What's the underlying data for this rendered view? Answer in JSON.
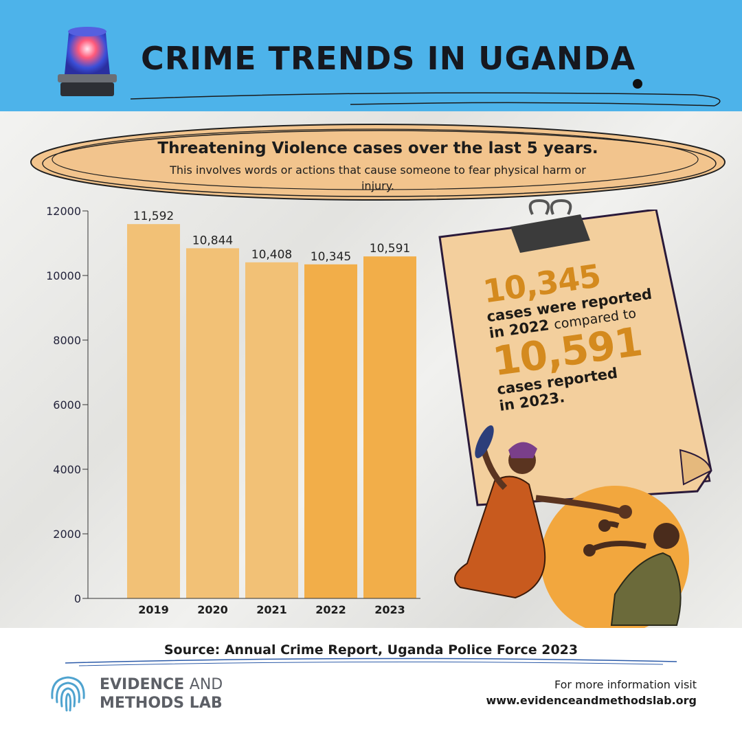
{
  "header": {
    "title": "CRIME TRENDS IN UGANDA",
    "background_color": "#4db3ea",
    "icon": "police-siren-icon"
  },
  "banner": {
    "title": "Threatening Violence cases over the last 5 years.",
    "subtitle": "This involves words or actions that cause someone to fear physical harm or injury.",
    "color": "#f2c48d"
  },
  "chart_data": {
    "type": "bar",
    "categories": [
      "2019",
      "2020",
      "2021",
      "2022",
      "2023"
    ],
    "values": [
      11592,
      10844,
      10408,
      10345,
      10591
    ],
    "data_labels": [
      "11,592",
      "10,844",
      "10,408",
      "10,345",
      "10,591"
    ],
    "title": "Threatening Violence cases over the last 5 years.",
    "xlabel": "",
    "ylabel": "",
    "ylim": [
      0,
      12000
    ],
    "yticks": [
      0,
      2000,
      4000,
      6000,
      8000,
      10000,
      12000
    ],
    "grid": false,
    "legend": "none",
    "bar_colors": [
      "#f2c176",
      "#f2c176",
      "#f2c176",
      "#f2ae49",
      "#f2ae49"
    ]
  },
  "callout": {
    "number_2022": "10,345",
    "text_2022_a": "cases were reported",
    "text_2022_b": "in 2022",
    "text_compare": "compared to",
    "number_2023": "10,591",
    "text_2023_a": "cases reported",
    "text_2023_b": "in 2023.",
    "accent_color": "#d48a1e"
  },
  "illustration": {
    "icon": "woman-attacking-man-illustration"
  },
  "footer": {
    "source": "Source: Annual Crime Report, Uganda Police Force 2023",
    "logo_line1_bold": "EVIDENCE",
    "logo_line1_light": "AND",
    "logo_line2": "METHODS LAB",
    "logo_icon": "fingerprint-icon",
    "more_info_label": "For more information visit",
    "url": "www.evidenceandmethodslab.org"
  }
}
